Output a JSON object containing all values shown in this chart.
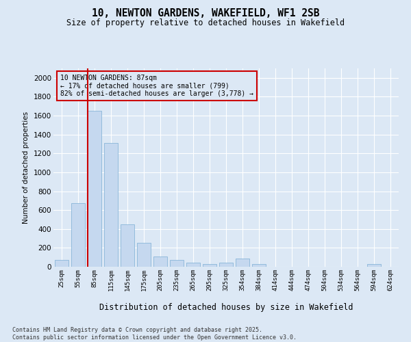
{
  "title": "10, NEWTON GARDENS, WAKEFIELD, WF1 2SB",
  "subtitle": "Size of property relative to detached houses in Wakefield",
  "xlabel": "Distribution of detached houses by size in Wakefield",
  "ylabel": "Number of detached properties",
  "bar_color": "#c5d8ef",
  "bar_edge_color": "#7aadd4",
  "background_color": "#dce8f5",
  "grid_color": "#ffffff",
  "vline_color": "#cc0000",
  "vline_x": 1.6,
  "annotation_text": "10 NEWTON GARDENS: 87sqm\n← 17% of detached houses are smaller (799)\n82% of semi-detached houses are larger (3,778) →",
  "annotation_box_color": "#cc0000",
  "categories": [
    "25sqm",
    "55sqm",
    "85sqm",
    "115sqm",
    "145sqm",
    "175sqm",
    "205sqm",
    "235sqm",
    "265sqm",
    "295sqm",
    "325sqm",
    "354sqm",
    "384sqm",
    "414sqm",
    "444sqm",
    "474sqm",
    "504sqm",
    "534sqm",
    "564sqm",
    "594sqm",
    "624sqm"
  ],
  "values": [
    70,
    670,
    1650,
    1310,
    450,
    250,
    110,
    70,
    45,
    30,
    40,
    90,
    30,
    0,
    0,
    0,
    0,
    0,
    0,
    30,
    0
  ],
  "ylim": [
    0,
    2100
  ],
  "yticks": [
    0,
    200,
    400,
    600,
    800,
    1000,
    1200,
    1400,
    1600,
    1800,
    2000
  ],
  "footnote": "Contains HM Land Registry data © Crown copyright and database right 2025.\nContains public sector information licensed under the Open Government Licence v3.0."
}
